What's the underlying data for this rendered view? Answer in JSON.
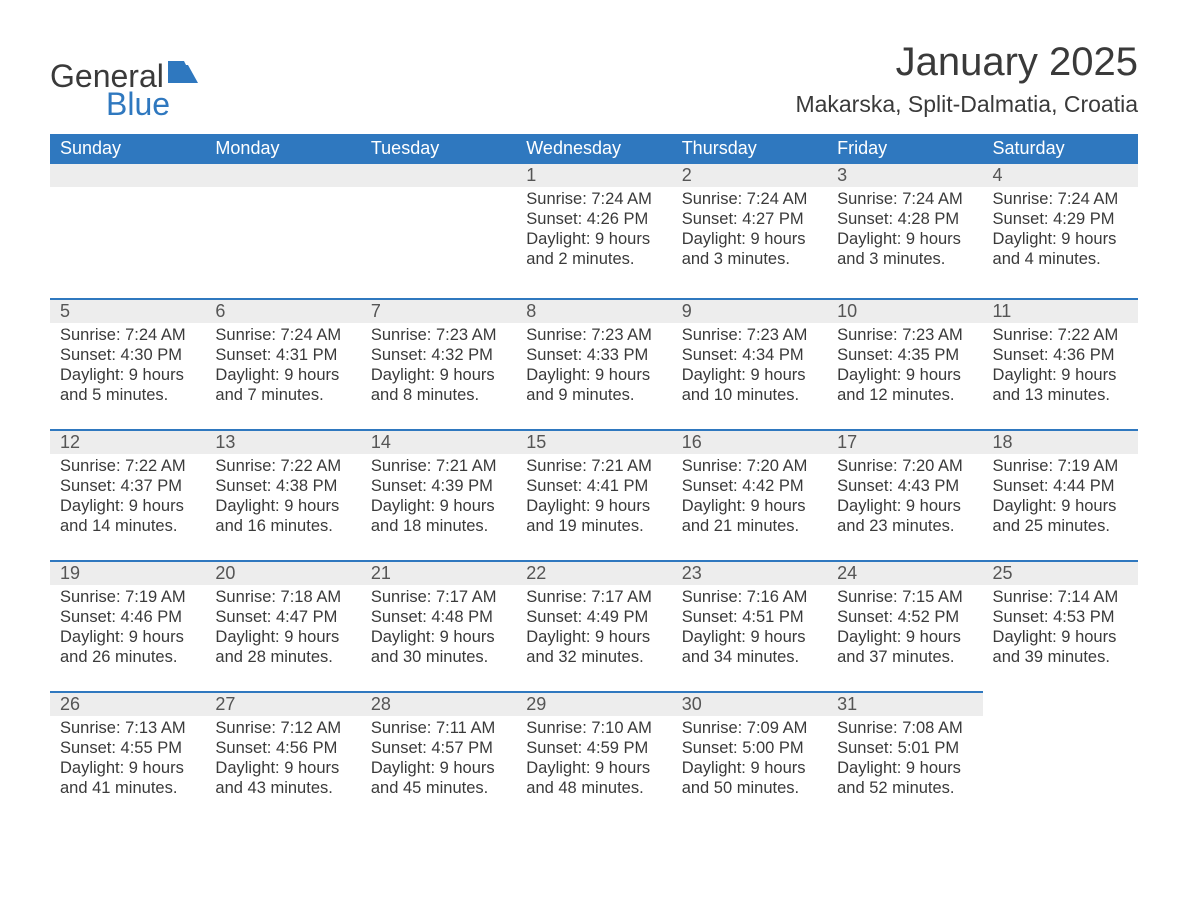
{
  "logo": {
    "text1": "General",
    "text2": "Blue",
    "color_general": "#3a3a3a",
    "color_blue": "#2f78bf"
  },
  "title": "January 2025",
  "location": "Makarska, Split-Dalmatia, Croatia",
  "colors": {
    "header_bg": "#2f78bf",
    "header_text": "#ffffff",
    "daynum_bg": "#ededed",
    "row_border": "#2f78bf",
    "body_text": "#3a3a3a",
    "page_bg": "#ffffff"
  },
  "fonts": {
    "title_size": 40,
    "location_size": 23,
    "dayheader_size": 18,
    "daynum_size": 18,
    "body_size": 16.5,
    "logo_size": 32
  },
  "day_headers": [
    "Sunday",
    "Monday",
    "Tuesday",
    "Wednesday",
    "Thursday",
    "Friday",
    "Saturday"
  ],
  "weeks": [
    [
      null,
      null,
      null,
      {
        "num": "1",
        "sunrise": "Sunrise: 7:24 AM",
        "sunset": "Sunset: 4:26 PM",
        "day1": "Daylight: 9 hours",
        "day2": "and 2 minutes."
      },
      {
        "num": "2",
        "sunrise": "Sunrise: 7:24 AM",
        "sunset": "Sunset: 4:27 PM",
        "day1": "Daylight: 9 hours",
        "day2": "and 3 minutes."
      },
      {
        "num": "3",
        "sunrise": "Sunrise: 7:24 AM",
        "sunset": "Sunset: 4:28 PM",
        "day1": "Daylight: 9 hours",
        "day2": "and 3 minutes."
      },
      {
        "num": "4",
        "sunrise": "Sunrise: 7:24 AM",
        "sunset": "Sunset: 4:29 PM",
        "day1": "Daylight: 9 hours",
        "day2": "and 4 minutes."
      }
    ],
    [
      {
        "num": "5",
        "sunrise": "Sunrise: 7:24 AM",
        "sunset": "Sunset: 4:30 PM",
        "day1": "Daylight: 9 hours",
        "day2": "and 5 minutes."
      },
      {
        "num": "6",
        "sunrise": "Sunrise: 7:24 AM",
        "sunset": "Sunset: 4:31 PM",
        "day1": "Daylight: 9 hours",
        "day2": "and 7 minutes."
      },
      {
        "num": "7",
        "sunrise": "Sunrise: 7:23 AM",
        "sunset": "Sunset: 4:32 PM",
        "day1": "Daylight: 9 hours",
        "day2": "and 8 minutes."
      },
      {
        "num": "8",
        "sunrise": "Sunrise: 7:23 AM",
        "sunset": "Sunset: 4:33 PM",
        "day1": "Daylight: 9 hours",
        "day2": "and 9 minutes."
      },
      {
        "num": "9",
        "sunrise": "Sunrise: 7:23 AM",
        "sunset": "Sunset: 4:34 PM",
        "day1": "Daylight: 9 hours",
        "day2": "and 10 minutes."
      },
      {
        "num": "10",
        "sunrise": "Sunrise: 7:23 AM",
        "sunset": "Sunset: 4:35 PM",
        "day1": "Daylight: 9 hours",
        "day2": "and 12 minutes."
      },
      {
        "num": "11",
        "sunrise": "Sunrise: 7:22 AM",
        "sunset": "Sunset: 4:36 PM",
        "day1": "Daylight: 9 hours",
        "day2": "and 13 minutes."
      }
    ],
    [
      {
        "num": "12",
        "sunrise": "Sunrise: 7:22 AM",
        "sunset": "Sunset: 4:37 PM",
        "day1": "Daylight: 9 hours",
        "day2": "and 14 minutes."
      },
      {
        "num": "13",
        "sunrise": "Sunrise: 7:22 AM",
        "sunset": "Sunset: 4:38 PM",
        "day1": "Daylight: 9 hours",
        "day2": "and 16 minutes."
      },
      {
        "num": "14",
        "sunrise": "Sunrise: 7:21 AM",
        "sunset": "Sunset: 4:39 PM",
        "day1": "Daylight: 9 hours",
        "day2": "and 18 minutes."
      },
      {
        "num": "15",
        "sunrise": "Sunrise: 7:21 AM",
        "sunset": "Sunset: 4:41 PM",
        "day1": "Daylight: 9 hours",
        "day2": "and 19 minutes."
      },
      {
        "num": "16",
        "sunrise": "Sunrise: 7:20 AM",
        "sunset": "Sunset: 4:42 PM",
        "day1": "Daylight: 9 hours",
        "day2": "and 21 minutes."
      },
      {
        "num": "17",
        "sunrise": "Sunrise: 7:20 AM",
        "sunset": "Sunset: 4:43 PM",
        "day1": "Daylight: 9 hours",
        "day2": "and 23 minutes."
      },
      {
        "num": "18",
        "sunrise": "Sunrise: 7:19 AM",
        "sunset": "Sunset: 4:44 PM",
        "day1": "Daylight: 9 hours",
        "day2": "and 25 minutes."
      }
    ],
    [
      {
        "num": "19",
        "sunrise": "Sunrise: 7:19 AM",
        "sunset": "Sunset: 4:46 PM",
        "day1": "Daylight: 9 hours",
        "day2": "and 26 minutes."
      },
      {
        "num": "20",
        "sunrise": "Sunrise: 7:18 AM",
        "sunset": "Sunset: 4:47 PM",
        "day1": "Daylight: 9 hours",
        "day2": "and 28 minutes."
      },
      {
        "num": "21",
        "sunrise": "Sunrise: 7:17 AM",
        "sunset": "Sunset: 4:48 PM",
        "day1": "Daylight: 9 hours",
        "day2": "and 30 minutes."
      },
      {
        "num": "22",
        "sunrise": "Sunrise: 7:17 AM",
        "sunset": "Sunset: 4:49 PM",
        "day1": "Daylight: 9 hours",
        "day2": "and 32 minutes."
      },
      {
        "num": "23",
        "sunrise": "Sunrise: 7:16 AM",
        "sunset": "Sunset: 4:51 PM",
        "day1": "Daylight: 9 hours",
        "day2": "and 34 minutes."
      },
      {
        "num": "24",
        "sunrise": "Sunrise: 7:15 AM",
        "sunset": "Sunset: 4:52 PM",
        "day1": "Daylight: 9 hours",
        "day2": "and 37 minutes."
      },
      {
        "num": "25",
        "sunrise": "Sunrise: 7:14 AM",
        "sunset": "Sunset: 4:53 PM",
        "day1": "Daylight: 9 hours",
        "day2": "and 39 minutes."
      }
    ],
    [
      {
        "num": "26",
        "sunrise": "Sunrise: 7:13 AM",
        "sunset": "Sunset: 4:55 PM",
        "day1": "Daylight: 9 hours",
        "day2": "and 41 minutes."
      },
      {
        "num": "27",
        "sunrise": "Sunrise: 7:12 AM",
        "sunset": "Sunset: 4:56 PM",
        "day1": "Daylight: 9 hours",
        "day2": "and 43 minutes."
      },
      {
        "num": "28",
        "sunrise": "Sunrise: 7:11 AM",
        "sunset": "Sunset: 4:57 PM",
        "day1": "Daylight: 9 hours",
        "day2": "and 45 minutes."
      },
      {
        "num": "29",
        "sunrise": "Sunrise: 7:10 AM",
        "sunset": "Sunset: 4:59 PM",
        "day1": "Daylight: 9 hours",
        "day2": "and 48 minutes."
      },
      {
        "num": "30",
        "sunrise": "Sunrise: 7:09 AM",
        "sunset": "Sunset: 5:00 PM",
        "day1": "Daylight: 9 hours",
        "day2": "and 50 minutes."
      },
      {
        "num": "31",
        "sunrise": "Sunrise: 7:08 AM",
        "sunset": "Sunset: 5:01 PM",
        "day1": "Daylight: 9 hours",
        "day2": "and 52 minutes."
      },
      null
    ]
  ]
}
